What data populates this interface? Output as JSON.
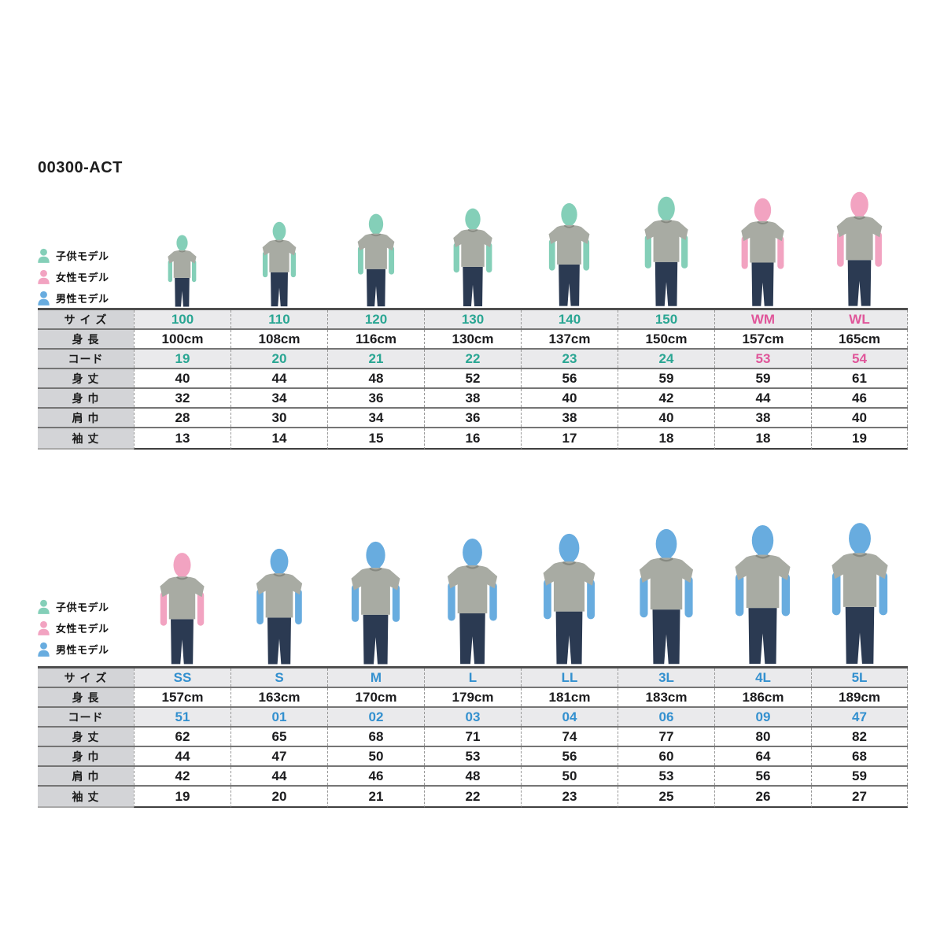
{
  "page": {
    "title": "00300-ACT"
  },
  "colors": {
    "accent_teal": "#2aa693",
    "accent_pink": "#e0569a",
    "accent_blue": "#3390cf",
    "figure_teal": "#84cfb8",
    "figure_pink": "#f2a3c1",
    "figure_blue": "#68acdf",
    "shirt": "#a8aba3",
    "collar": "#878a82",
    "jeans": "#2b3a52",
    "header_row_bg": "#eaeaec",
    "label_col_bg": "#d3d4d7"
  },
  "legend": {
    "items": [
      {
        "id": "child",
        "label": "子供モデル",
        "figure": "teal"
      },
      {
        "id": "female",
        "label": "女性モデル",
        "figure": "pink"
      },
      {
        "id": "male",
        "label": "男性モデル",
        "figure": "blue"
      }
    ]
  },
  "row_labels": {
    "size": "サ イ ズ",
    "height": "身 長",
    "code": "コード",
    "body_length": "身 丈",
    "body_width": "身 巾",
    "shoulder": "肩 巾",
    "sleeve": "袖 丈"
  },
  "sections": [
    {
      "id": "kids-women",
      "columns": [
        {
          "size": "100",
          "height": "100cm",
          "code": "19",
          "body_length": "40",
          "body_width": "32",
          "shoulder": "28",
          "sleeve": "13",
          "accent": "teal",
          "figure": "teal",
          "figure_height": 93
        },
        {
          "size": "110",
          "height": "108cm",
          "code": "20",
          "body_length": "44",
          "body_width": "34",
          "shoulder": "30",
          "sleeve": "14",
          "accent": "teal",
          "figure": "teal",
          "figure_height": 110
        },
        {
          "size": "120",
          "height": "116cm",
          "code": "21",
          "body_length": "48",
          "body_width": "36",
          "shoulder": "34",
          "sleeve": "15",
          "accent": "teal",
          "figure": "teal",
          "figure_height": 120
        },
        {
          "size": "130",
          "height": "130cm",
          "code": "22",
          "body_length": "52",
          "body_width": "38",
          "shoulder": "36",
          "sleeve": "16",
          "accent": "teal",
          "figure": "teal",
          "figure_height": 127
        },
        {
          "size": "140",
          "height": "137cm",
          "code": "23",
          "body_length": "56",
          "body_width": "40",
          "shoulder": "38",
          "sleeve": "17",
          "accent": "teal",
          "figure": "teal",
          "figure_height": 134
        },
        {
          "size": "150",
          "height": "150cm",
          "code": "24",
          "body_length": "59",
          "body_width": "42",
          "shoulder": "40",
          "sleeve": "18",
          "accent": "teal",
          "figure": "teal",
          "figure_height": 142
        },
        {
          "size": "WM",
          "height": "157cm",
          "code": "53",
          "body_length": "59",
          "body_width": "44",
          "shoulder": "38",
          "sleeve": "18",
          "accent": "pink",
          "figure": "pink",
          "figure_height": 140
        },
        {
          "size": "WL",
          "height": "165cm",
          "code": "54",
          "body_length": "61",
          "body_width": "46",
          "shoulder": "40",
          "sleeve": "19",
          "accent": "pink",
          "figure": "pink",
          "figure_height": 148
        }
      ]
    },
    {
      "id": "mens",
      "columns": [
        {
          "size": "SS",
          "height": "157cm",
          "code": "51",
          "body_length": "62",
          "body_width": "44",
          "shoulder": "42",
          "sleeve": "19",
          "accent": "blue",
          "figure": "pink",
          "figure_height": 145
        },
        {
          "size": "S",
          "height": "163cm",
          "code": "01",
          "body_length": "65",
          "body_width": "47",
          "shoulder": "44",
          "sleeve": "20",
          "accent": "blue",
          "figure": "blue",
          "figure_height": 150
        },
        {
          "size": "M",
          "height": "170cm",
          "code": "02",
          "body_length": "68",
          "body_width": "50",
          "shoulder": "46",
          "sleeve": "21",
          "accent": "blue",
          "figure": "blue",
          "figure_height": 159
        },
        {
          "size": "L",
          "height": "179cm",
          "code": "03",
          "body_length": "71",
          "body_width": "53",
          "shoulder": "48",
          "sleeve": "22",
          "accent": "blue",
          "figure": "blue",
          "figure_height": 163
        },
        {
          "size": "LL",
          "height": "181cm",
          "code": "04",
          "body_length": "74",
          "body_width": "56",
          "shoulder": "50",
          "sleeve": "23",
          "accent": "blue",
          "figure": "blue",
          "figure_height": 169
        },
        {
          "size": "3L",
          "height": "183cm",
          "code": "06",
          "body_length": "77",
          "body_width": "60",
          "shoulder": "53",
          "sleeve": "25",
          "accent": "blue",
          "figure": "blue",
          "figure_height": 175
        },
        {
          "size": "4L",
          "height": "186cm",
          "code": "09",
          "body_length": "80",
          "body_width": "64",
          "shoulder": "56",
          "sleeve": "26",
          "accent": "blue",
          "figure": "blue",
          "figure_height": 180
        },
        {
          "size": "5L",
          "height": "189cm",
          "code": "47",
          "body_length": "82",
          "body_width": "68",
          "shoulder": "59",
          "sleeve": "27",
          "accent": "blue",
          "figure": "blue",
          "figure_height": 183
        }
      ]
    }
  ]
}
